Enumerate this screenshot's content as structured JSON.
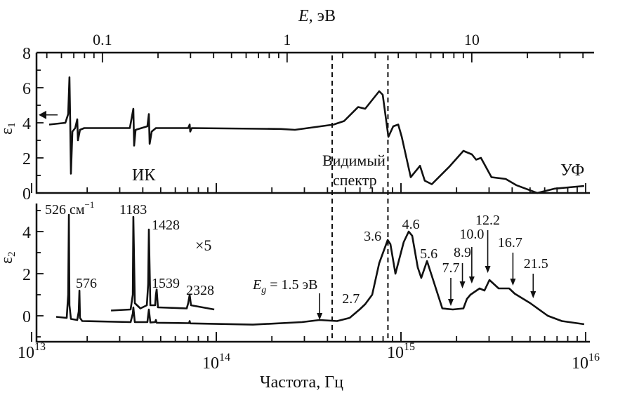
{
  "chart_data": {
    "type": "line",
    "title": "",
    "xlabel": "Частота, Гц",
    "x_scale": "log",
    "xlim_hz": [
      10000000000000.0,
      1e+16
    ],
    "x_ticks": [
      {
        "value": 10000000000000.0,
        "base": "10",
        "exp": "13"
      },
      {
        "value": 100000000000000.0,
        "base": "10",
        "exp": "14"
      },
      {
        "value": 1000000000000000.0,
        "base": "10",
        "exp": "15"
      },
      {
        "value": 1e+16,
        "base": "10",
        "exp": "16"
      }
    ],
    "top_axis": {
      "label": "E, эВ",
      "label_italic": "E",
      "label_rest": ", эВ",
      "hz_per_ev": 241800000000000.0,
      "ticks": [
        {
          "value": 0.1,
          "label": "0.1"
        },
        {
          "value": 1,
          "label": "1"
        },
        {
          "value": 10,
          "label": "10"
        }
      ]
    },
    "visible_band_hz": [
      424000000000000.0,
      850000000000000.0
    ],
    "region_labels": {
      "ir": "ИК",
      "visible_1": "Видимый",
      "visible_2": "спектр",
      "uv": "УФ"
    },
    "panels": [
      {
        "ylabel": "ε",
        "ylabel_sub": "1",
        "ylim": [
          0,
          8
        ],
        "y_ticks": [
          "0",
          "2",
          "4",
          "6",
          "8"
        ],
        "static_marker_value": 4.45,
        "series": [
          {
            "name": "eps1",
            "points_log10hz": [
              [
                13.095,
                3.9
              ],
              [
                13.183,
                4.0
              ],
              [
                13.198,
                4.5
              ],
              [
                13.205,
                6.6
              ],
              [
                13.209,
                4.0
              ],
              [
                13.213,
                1.1
              ],
              [
                13.221,
                3.5
              ],
              [
                13.236,
                3.7
              ],
              [
                13.247,
                4.2
              ],
              [
                13.251,
                3.0
              ],
              [
                13.262,
                3.6
              ],
              [
                13.285,
                3.7
              ],
              [
                13.532,
                3.7
              ],
              [
                13.551,
                4.8
              ],
              [
                13.555,
                2.7
              ],
              [
                13.563,
                3.6
              ],
              [
                13.627,
                3.8
              ],
              [
                13.635,
                4.5
              ],
              [
                13.639,
                2.8
              ],
              [
                13.65,
                3.5
              ],
              [
                13.673,
                3.7
              ],
              [
                13.848,
                3.7
              ],
              [
                13.856,
                3.9
              ],
              [
                13.859,
                3.5
              ],
              [
                13.867,
                3.7
              ],
              [
                14.35,
                3.65
              ],
              [
                14.426,
                3.6
              ],
              [
                14.635,
                3.9
              ],
              [
                14.692,
                4.1
              ],
              [
                14.768,
                4.9
              ],
              [
                14.806,
                4.8
              ],
              [
                14.844,
                5.3
              ],
              [
                14.882,
                5.8
              ],
              [
                14.901,
                5.6
              ],
              [
                14.932,
                3.2
              ],
              [
                14.958,
                3.8
              ],
              [
                14.985,
                3.9
              ],
              [
                15.004,
                3.2
              ],
              [
                15.053,
                0.9
              ],
              [
                15.103,
                1.55
              ],
              [
                15.129,
                0.7
              ],
              [
                15.167,
                0.5
              ],
              [
                15.262,
                1.5
              ],
              [
                15.338,
                2.4
              ],
              [
                15.384,
                2.2
              ],
              [
                15.407,
                1.9
              ],
              [
                15.433,
                2.0
              ],
              [
                15.49,
                0.9
              ],
              [
                15.567,
                0.8
              ],
              [
                15.624,
                0.45
              ],
              [
                15.738,
                0.0
              ],
              [
                15.833,
                0.25
              ],
              [
                15.992,
                0.4
              ]
            ]
          }
        ]
      },
      {
        "ylabel": "ε",
        "ylabel_sub": "2",
        "ylim": [
          -1,
          5
        ],
        "y_ticks": [
          "0",
          "2",
          "4"
        ],
        "series": [
          {
            "name": "eps2",
            "points_log10hz": [
              [
                13.133,
                -0.05
              ],
              [
                13.19,
                -0.1
              ],
              [
                13.198,
                1.0
              ],
              [
                13.202,
                4.8
              ],
              [
                13.205,
                0.5
              ],
              [
                13.213,
                -0.15
              ],
              [
                13.247,
                -0.2
              ],
              [
                13.255,
                0.2
              ],
              [
                13.259,
                1.2
              ],
              [
                13.262,
                -0.1
              ],
              [
                13.274,
                -0.25
              ],
              [
                13.536,
                -0.3
              ],
              [
                13.548,
                0.1
              ],
              [
                13.551,
                0.4
              ],
              [
                13.559,
                -0.3
              ],
              [
                13.627,
                -0.3
              ],
              [
                13.635,
                0.3
              ],
              [
                13.643,
                -0.32
              ],
              [
                13.669,
                -0.3
              ],
              [
                13.673,
                -0.2
              ],
              [
                13.677,
                -0.33
              ],
              [
                13.852,
                -0.35
              ],
              [
                13.856,
                -0.25
              ],
              [
                13.859,
                -0.36
              ],
              [
                14.198,
                -0.42
              ],
              [
                14.464,
                -0.3
              ],
              [
                14.559,
                -0.2
              ],
              [
                14.654,
                -0.25
              ],
              [
                14.722,
                -0.1
              ],
              [
                14.776,
                0.3
              ],
              [
                14.806,
                0.55
              ],
              [
                14.844,
                1.0
              ],
              [
                14.882,
                2.5
              ],
              [
                14.928,
                3.6
              ],
              [
                14.943,
                3.4
              ],
              [
                14.97,
                2.0
              ],
              [
                15.015,
                3.5
              ],
              [
                15.042,
                4.0
              ],
              [
                15.061,
                3.8
              ],
              [
                15.091,
                2.3
              ],
              [
                15.11,
                1.8
              ],
              [
                15.141,
                2.6
              ],
              [
                15.167,
                1.9
              ],
              [
                15.224,
                0.35
              ],
              [
                15.281,
                0.3
              ],
              [
                15.338,
                0.35
              ],
              [
                15.357,
                0.8
              ],
              [
                15.376,
                1.0
              ],
              [
                15.426,
                1.3
              ],
              [
                15.452,
                1.2
              ],
              [
                15.479,
                1.7
              ],
              [
                15.529,
                1.3
              ],
              [
                15.586,
                1.3
              ],
              [
                15.616,
                1.05
              ],
              [
                15.7,
                0.6
              ],
              [
                15.795,
                0.0
              ],
              [
                15.871,
                -0.25
              ],
              [
                15.992,
                -0.4
              ]
            ]
          },
          {
            "name": "eps2 ×5",
            "points_log10hz": [
              [
                13.43,
                0.25
              ],
              [
                13.536,
                0.3
              ],
              [
                13.548,
                1.0
              ],
              [
                13.551,
                4.7
              ],
              [
                13.559,
                0.6
              ],
              [
                13.589,
                0.35
              ],
              [
                13.624,
                0.5
              ],
              [
                13.631,
                1.5
              ],
              [
                13.635,
                4.1
              ],
              [
                13.643,
                0.5
              ],
              [
                13.669,
                0.5
              ],
              [
                13.673,
                1.0
              ],
              [
                13.677,
                1.25
              ],
              [
                13.684,
                0.4
              ],
              [
                13.84,
                0.35
              ],
              [
                13.848,
                0.6
              ],
              [
                13.856,
                1.0
              ],
              [
                13.863,
                0.5
              ],
              [
                13.989,
                0.3
              ]
            ]
          }
        ],
        "scale_label": "×5",
        "phonon_labels": [
          "526 см",
          "576",
          "1183",
          "1428",
          "1539",
          "2328"
        ],
        "phonon_unit_sup": "−1",
        "gap_label": {
          "sym": "E",
          "sub": "g",
          "rest": " = 1.5 эВ",
          "ev": 1.5
        },
        "peak_annotations": [
          {
            "label": "2.7",
            "ev": 2.7,
            "arrow": false
          },
          {
            "label": "3.6",
            "ev": 3.6,
            "arrow": false
          },
          {
            "label": "4.6",
            "ev": 4.6,
            "arrow": false
          },
          {
            "label": "5.6",
            "ev": 5.6,
            "arrow": false
          },
          {
            "label": "7.7",
            "ev": 7.7,
            "arrow": true
          },
          {
            "label": "8.9",
            "ev": 8.9,
            "arrow": true
          },
          {
            "label": "10.0",
            "ev": 10.0,
            "arrow": true
          },
          {
            "label": "12.2",
            "ev": 12.2,
            "arrow": true
          },
          {
            "label": "16.7",
            "ev": 16.7,
            "arrow": true
          },
          {
            "label": "21.5",
            "ev": 21.5,
            "arrow": true
          }
        ]
      }
    ]
  }
}
